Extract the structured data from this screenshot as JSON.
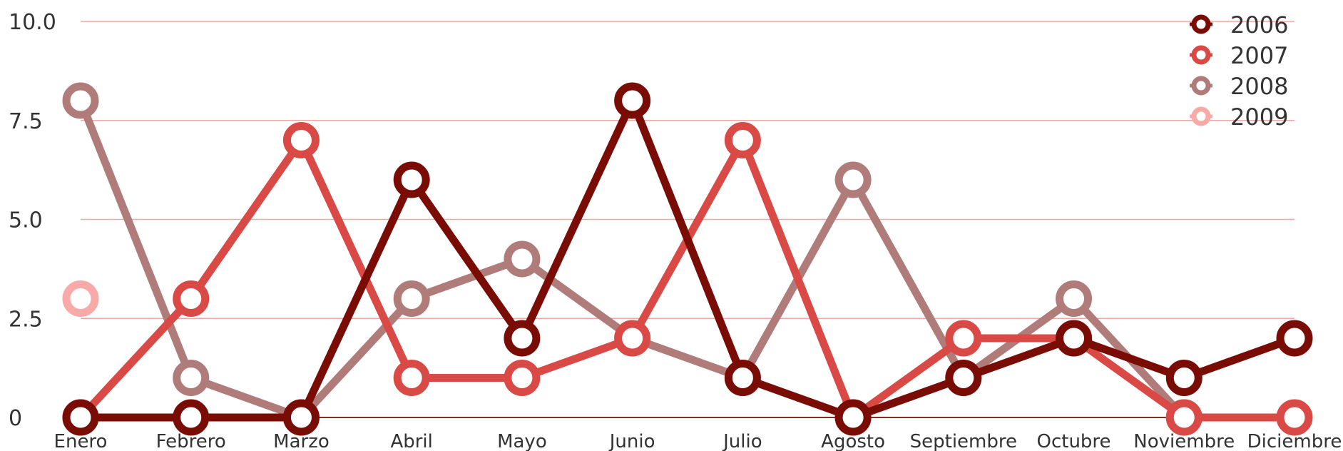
{
  "chart_data": {
    "type": "line",
    "title": "",
    "xlabel": "",
    "ylabel": "",
    "categories": [
      "Enero",
      "Febrero",
      "Marzo",
      "Abril",
      "Mayo",
      "Junio",
      "Julio",
      "Agosto",
      "Septiembre",
      "Octubre",
      "Noviembre",
      "Diciembre"
    ],
    "yticks": [
      "0",
      "2.5",
      "5.0",
      "7.5",
      "10.0"
    ],
    "ylim": [
      0,
      10
    ],
    "grid": true,
    "legend": "top-right",
    "series": [
      {
        "name": "2006",
        "color": "#7a0c06",
        "values": [
          0,
          0,
          0,
          6,
          2,
          8,
          1,
          0,
          1,
          2,
          1,
          2
        ]
      },
      {
        "name": "2007",
        "color": "#d94a46",
        "values": [
          0,
          3,
          7,
          1,
          1,
          2,
          7,
          0,
          2,
          2,
          0,
          0
        ]
      },
      {
        "name": "2008",
        "color": "#b07c7a",
        "values": [
          8,
          1,
          0,
          3,
          4,
          2,
          1,
          6,
          1,
          3,
          0,
          null
        ]
      },
      {
        "name": "2009",
        "color": "#f7aaa8",
        "values": [
          3,
          null,
          null,
          null,
          null,
          null,
          null,
          null,
          null,
          null,
          null,
          null
        ]
      }
    ]
  }
}
